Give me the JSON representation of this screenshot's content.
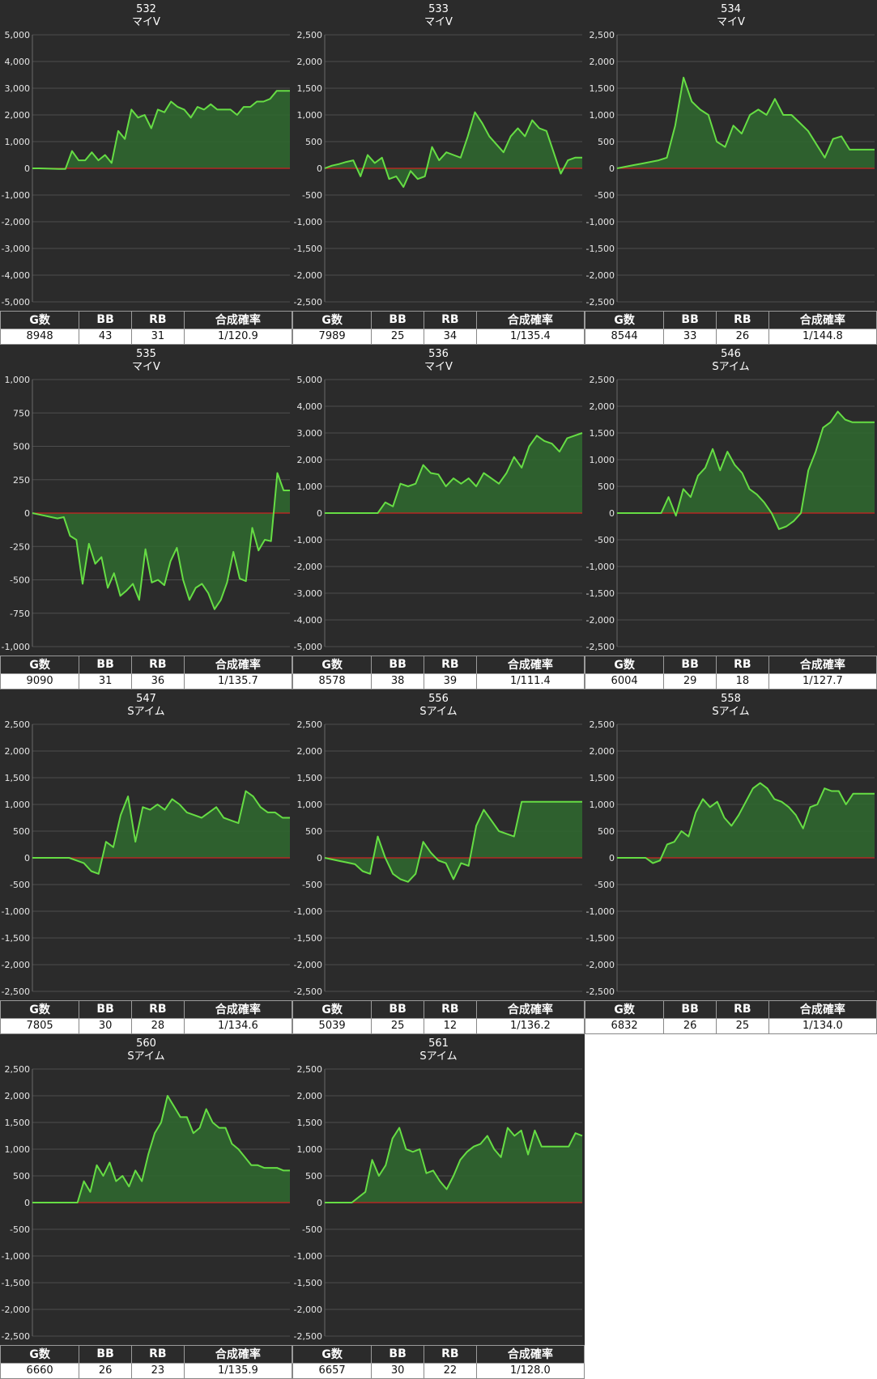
{
  "stats_headers": [
    "G数",
    "BB",
    "RB",
    "合成確率"
  ],
  "colors": {
    "panel_bg": "#2b2b2b",
    "line": "#66dd44",
    "fill": "#2f6a2f",
    "zero_line": "#cc2222",
    "grid": "#4e4e4e"
  },
  "chart_data": [
    {
      "type": "area",
      "title": "532",
      "subtitle": "マイV",
      "ylim": [
        -5000,
        5000
      ],
      "yticks": [
        5000,
        4000,
        3000,
        2000,
        1000,
        0,
        -1000,
        -2000,
        -3000,
        -4000,
        -5000
      ],
      "values": [
        0,
        0,
        -10,
        -15,
        -20,
        -25,
        650,
        300,
        300,
        600,
        300,
        500,
        200,
        1400,
        1100,
        2200,
        1900,
        2000,
        1500,
        2200,
        2100,
        2500,
        2300,
        2200,
        1900,
        2300,
        2200,
        2400,
        2200,
        2200,
        2200,
        2000,
        2300,
        2300,
        2500,
        2500,
        2600,
        2900,
        2900,
        2900
      ],
      "stats": {
        "games": "8948",
        "bb": "43",
        "rb": "31",
        "rate": "1/120.9"
      }
    },
    {
      "type": "area",
      "title": "533",
      "subtitle": "マイV",
      "ylim": [
        -2500,
        2500
      ],
      "yticks": [
        2500,
        2000,
        1500,
        1000,
        500,
        0,
        -500,
        -1000,
        -1500,
        -2000,
        -2500
      ],
      "values": [
        0,
        50,
        80,
        120,
        150,
        -150,
        250,
        100,
        200,
        -200,
        -150,
        -350,
        -50,
        -200,
        -150,
        400,
        150,
        300,
        250,
        200,
        600,
        1050,
        850,
        600,
        450,
        300,
        600,
        750,
        600,
        900,
        750,
        700,
        300,
        -100,
        150,
        200,
        200
      ],
      "stats": {
        "games": "7989",
        "bb": "25",
        "rb": "34",
        "rate": "1/135.4"
      }
    },
    {
      "type": "area",
      "title": "534",
      "subtitle": "マイV",
      "ylim": [
        -2500,
        2500
      ],
      "yticks": [
        2500,
        2000,
        1500,
        1000,
        500,
        0,
        -500,
        -1000,
        -1500,
        -2000,
        -2500
      ],
      "values": [
        0,
        30,
        60,
        90,
        120,
        150,
        200,
        800,
        1700,
        1250,
        1100,
        1000,
        500,
        400,
        800,
        650,
        1000,
        1100,
        1000,
        1300,
        1000,
        1000,
        850,
        700,
        450,
        200,
        550,
        600,
        350,
        350,
        350,
        350
      ],
      "stats": {
        "games": "8544",
        "bb": "33",
        "rb": "26",
        "rate": "1/144.8"
      }
    },
    {
      "type": "area",
      "title": "535",
      "subtitle": "マイV",
      "ylim": [
        -1000,
        1000
      ],
      "yticks": [
        1000,
        750,
        500,
        250,
        0,
        -250,
        -500,
        -750,
        -1000
      ],
      "values": [
        0,
        -10,
        -20,
        -30,
        -40,
        -30,
        -170,
        -200,
        -530,
        -230,
        -380,
        -330,
        -560,
        -450,
        -620,
        -580,
        -530,
        -650,
        -270,
        -520,
        -500,
        -540,
        -360,
        -260,
        -500,
        -650,
        -560,
        -530,
        -600,
        -720,
        -650,
        -520,
        -290,
        -490,
        -510,
        -110,
        -280,
        -200,
        -210,
        300,
        170,
        170
      ],
      "stats": {
        "games": "9090",
        "bb": "31",
        "rb": "36",
        "rate": "1/135.7"
      }
    },
    {
      "type": "area",
      "title": "536",
      "subtitle": "マイV",
      "ylim": [
        -5000,
        5000
      ],
      "yticks": [
        5000,
        4000,
        3000,
        2000,
        1000,
        0,
        -1000,
        -2000,
        -3000,
        -4000,
        -5000
      ],
      "values": [
        0,
        0,
        0,
        0,
        0,
        0,
        0,
        0,
        400,
        250,
        1100,
        1000,
        1100,
        1800,
        1500,
        1450,
        1000,
        1300,
        1100,
        1300,
        1000,
        1500,
        1300,
        1100,
        1500,
        2100,
        1700,
        2500,
        2900,
        2700,
        2600,
        2300,
        2800,
        2900,
        3000
      ],
      "stats": {
        "games": "8578",
        "bb": "38",
        "rb": "39",
        "rate": "1/111.4"
      }
    },
    {
      "type": "area",
      "title": "546",
      "subtitle": "Sアイム",
      "ylim": [
        -2500,
        2500
      ],
      "yticks": [
        2500,
        2000,
        1500,
        1000,
        500,
        0,
        -500,
        -1000,
        -1500,
        -2000,
        -2500
      ],
      "values": [
        0,
        0,
        0,
        0,
        0,
        0,
        0,
        300,
        -50,
        450,
        300,
        700,
        850,
        1200,
        800,
        1150,
        900,
        750,
        450,
        350,
        200,
        0,
        -300,
        -250,
        -150,
        0,
        800,
        1150,
        1600,
        1700,
        1900,
        1750,
        1700,
        1700,
        1700,
        1700
      ],
      "stats": {
        "games": "6004",
        "bb": "29",
        "rb": "18",
        "rate": "1/127.7"
      }
    },
    {
      "type": "area",
      "title": "547",
      "subtitle": "Sアイム",
      "ylim": [
        -2500,
        2500
      ],
      "yticks": [
        2500,
        2000,
        1500,
        1000,
        500,
        0,
        -500,
        -1000,
        -1500,
        -2000,
        -2500
      ],
      "values": [
        0,
        0,
        0,
        0,
        0,
        0,
        -50,
        -100,
        -250,
        -300,
        300,
        200,
        800,
        1150,
        300,
        950,
        900,
        1000,
        900,
        1100,
        1000,
        850,
        800,
        750,
        850,
        950,
        750,
        700,
        650,
        1250,
        1150,
        950,
        850,
        850,
        750,
        750
      ],
      "stats": {
        "games": "7805",
        "bb": "30",
        "rb": "28",
        "rate": "1/134.6"
      }
    },
    {
      "type": "area",
      "title": "556",
      "subtitle": "Sアイム",
      "ylim": [
        -2500,
        2500
      ],
      "yticks": [
        2500,
        2000,
        1500,
        1000,
        500,
        0,
        -500,
        -1000,
        -1500,
        -2000,
        -2500
      ],
      "values": [
        0,
        -30,
        -60,
        -90,
        -120,
        -250,
        -300,
        400,
        0,
        -300,
        -400,
        -450,
        -300,
        300,
        100,
        -50,
        -100,
        -400,
        -100,
        -150,
        600,
        900,
        700,
        500,
        450,
        400,
        1050,
        1050,
        1050,
        1050,
        1050,
        1050,
        1050,
        1050,
        1050
      ],
      "stats": {
        "games": "5039",
        "bb": "25",
        "rb": "12",
        "rate": "1/136.2"
      }
    },
    {
      "type": "area",
      "title": "558",
      "subtitle": "Sアイム",
      "ylim": [
        -2500,
        2500
      ],
      "yticks": [
        2500,
        2000,
        1500,
        1000,
        500,
        0,
        -500,
        -1000,
        -1500,
        -2000,
        -2500
      ],
      "values": [
        0,
        0,
        0,
        0,
        0,
        -100,
        -50,
        250,
        300,
        500,
        400,
        850,
        1100,
        950,
        1050,
        750,
        600,
        800,
        1050,
        1300,
        1400,
        1300,
        1100,
        1050,
        950,
        800,
        550,
        950,
        1000,
        1300,
        1250,
        1250,
        1000,
        1200,
        1200,
        1200,
        1200
      ],
      "stats": {
        "games": "6832",
        "bb": "26",
        "rb": "25",
        "rate": "1/134.0"
      }
    },
    {
      "type": "area",
      "title": "560",
      "subtitle": "Sアイム",
      "ylim": [
        -2500,
        2500
      ],
      "yticks": [
        2500,
        2000,
        1500,
        1000,
        500,
        0,
        -500,
        -1000,
        -1500,
        -2000,
        -2500
      ],
      "values": [
        0,
        0,
        0,
        0,
        0,
        0,
        0,
        0,
        400,
        200,
        700,
        500,
        750,
        400,
        500,
        300,
        600,
        400,
        900,
        1300,
        1500,
        2000,
        1800,
        1600,
        1600,
        1300,
        1400,
        1750,
        1500,
        1400,
        1400,
        1100,
        1000,
        850,
        700,
        700,
        650,
        650,
        650,
        600,
        600
      ],
      "stats": {
        "games": "6660",
        "bb": "26",
        "rb": "23",
        "rate": "1/135.9"
      }
    },
    {
      "type": "area",
      "title": "561",
      "subtitle": "Sアイム",
      "ylim": [
        -2500,
        2500
      ],
      "yticks": [
        2500,
        2000,
        1500,
        1000,
        500,
        0,
        -500,
        -1000,
        -1500,
        -2000,
        -2500
      ],
      "values": [
        0,
        0,
        0,
        0,
        0,
        100,
        200,
        800,
        500,
        700,
        1200,
        1400,
        1000,
        950,
        1000,
        550,
        600,
        400,
        250,
        500,
        800,
        950,
        1050,
        1100,
        1250,
        1000,
        850,
        1400,
        1250,
        1350,
        900,
        1350,
        1050,
        1050,
        1050,
        1050,
        1050,
        1300,
        1250
      ],
      "stats": {
        "games": "6657",
        "bb": "30",
        "rb": "22",
        "rate": "1/128.0"
      }
    }
  ]
}
